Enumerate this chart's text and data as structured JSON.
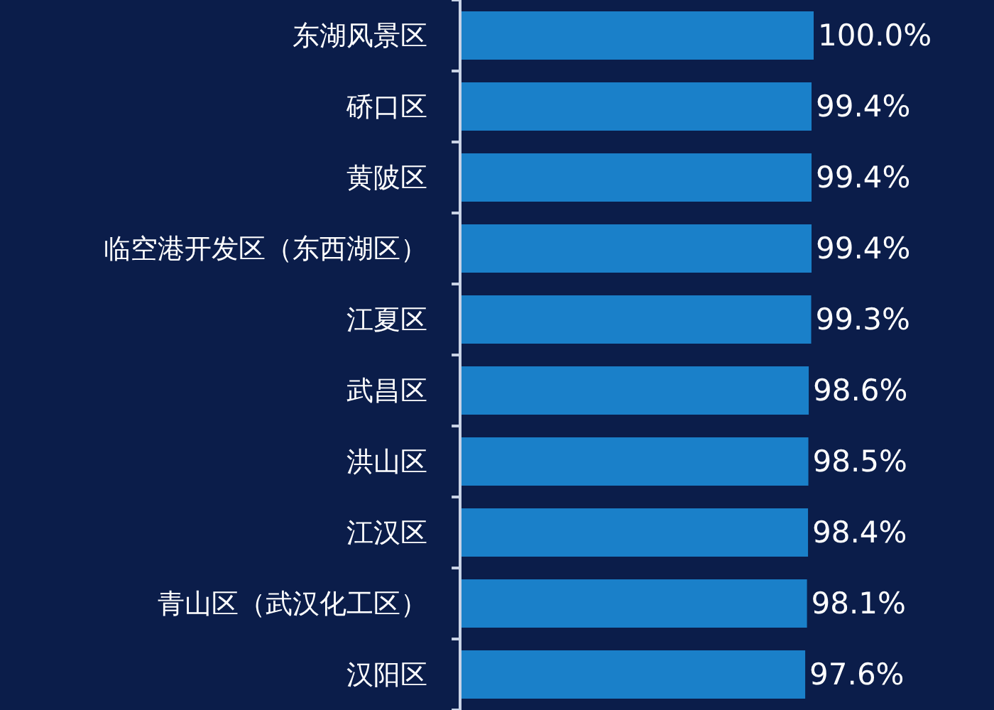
{
  "chart_data": {
    "type": "bar",
    "orientation": "horizontal",
    "categories": [
      "东湖风景区",
      "硚口区",
      "黄陂区",
      "临空港开发区（东西湖区）",
      "江夏区",
      "武昌区",
      "洪山区",
      "江汉区",
      "青山区（武汉化工区）",
      "汉阳区"
    ],
    "values": [
      100.0,
      99.4,
      99.4,
      99.4,
      99.3,
      98.6,
      98.5,
      98.4,
      98.1,
      97.6
    ],
    "value_labels": [
      "100.0%",
      "99.4%",
      "99.4%",
      "99.4%",
      "99.3%",
      "98.6%",
      "98.5%",
      "98.4%",
      "98.1%",
      "97.6%"
    ],
    "color": "#1a80c9",
    "tick_labels": "y"
  }
}
